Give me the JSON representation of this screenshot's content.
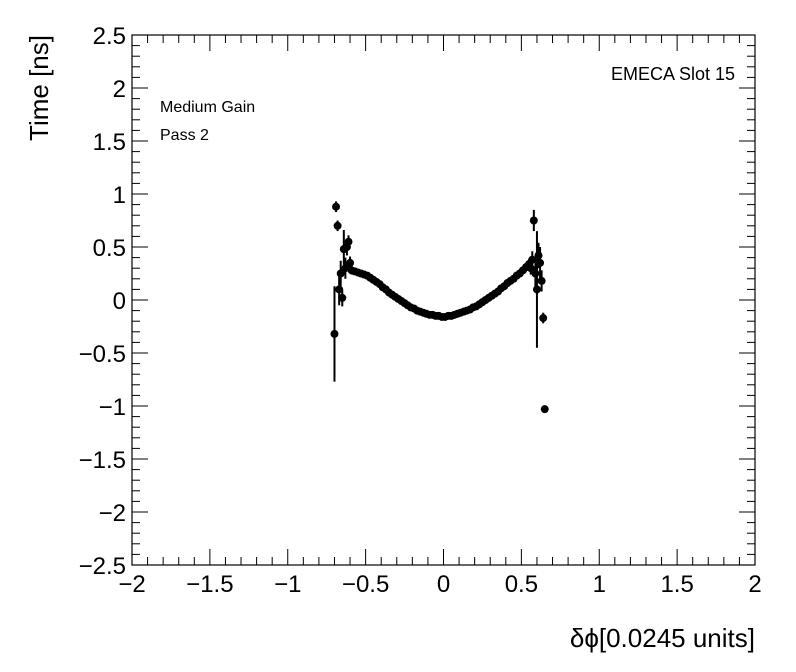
{
  "chart_data": {
    "type": "scatter",
    "title": "",
    "xlabel": "δϕ[0.0245 units]",
    "ylabel": "Time [ns]",
    "xlim": [
      -2,
      2
    ],
    "ylim": [
      -2.5,
      2.5
    ],
    "x_ticks": [
      -2,
      -1.5,
      -1,
      -0.5,
      0,
      0.5,
      1,
      1.5,
      2
    ],
    "x_tick_labels": [
      "−2",
      "−1.5",
      "−1",
      "−0.5",
      "0",
      "0.5",
      "1",
      "1.5",
      "2"
    ],
    "y_ticks": [
      -2.5,
      -2,
      -1.5,
      -1,
      -0.5,
      0,
      0.5,
      1,
      1.5,
      2,
      2.5
    ],
    "y_tick_labels": [
      "−2.5",
      "−2",
      "−1.5",
      "−1",
      "−0.5",
      "0",
      "0.5",
      "1",
      "1.5",
      "2",
      "2.5"
    ],
    "grid": false,
    "annotations": {
      "gain": "Medium Gain",
      "pass": "Pass 2",
      "slot": "EMECA Slot 15"
    },
    "points": [
      {
        "x": -0.7,
        "y": -0.32,
        "err": 0.45
      },
      {
        "x": -0.69,
        "y": 0.88,
        "err": 0.05
      },
      {
        "x": -0.68,
        "y": 0.7,
        "err": 0.05
      },
      {
        "x": -0.67,
        "y": 0.1,
        "err": 0.15
      },
      {
        "x": -0.66,
        "y": 0.25,
        "err": 0.12
      },
      {
        "x": -0.65,
        "y": 0.02,
        "err": 0.08
      },
      {
        "x": -0.64,
        "y": 0.48,
        "err": 0.18
      },
      {
        "x": -0.63,
        "y": 0.3,
        "err": 0.1
      },
      {
        "x": -0.62,
        "y": 0.5,
        "err": 0.08
      },
      {
        "x": -0.61,
        "y": 0.55,
        "err": 0.06
      },
      {
        "x": -0.6,
        "y": 0.35,
        "err": 0.06
      },
      {
        "x": -0.59,
        "y": 0.28,
        "err": 0.04
      },
      {
        "x": -0.57,
        "y": 0.27,
        "err": 0.03
      },
      {
        "x": -0.55,
        "y": 0.26,
        "err": 0.02
      },
      {
        "x": -0.53,
        "y": 0.25,
        "err": 0.02
      },
      {
        "x": -0.51,
        "y": 0.24,
        "err": 0.02
      },
      {
        "x": -0.49,
        "y": 0.23,
        "err": 0.02
      },
      {
        "x": -0.47,
        "y": 0.21,
        "err": 0.02
      },
      {
        "x": -0.45,
        "y": 0.19,
        "err": 0.02
      },
      {
        "x": -0.43,
        "y": 0.17,
        "err": 0.02
      },
      {
        "x": -0.41,
        "y": 0.15,
        "err": 0.02
      },
      {
        "x": -0.39,
        "y": 0.12,
        "err": 0.02
      },
      {
        "x": -0.37,
        "y": 0.1,
        "err": 0.02
      },
      {
        "x": -0.35,
        "y": 0.07,
        "err": 0.02
      },
      {
        "x": -0.33,
        "y": 0.05,
        "err": 0.02
      },
      {
        "x": -0.31,
        "y": 0.03,
        "err": 0.02
      },
      {
        "x": -0.29,
        "y": 0.01,
        "err": 0.02
      },
      {
        "x": -0.27,
        "y": -0.01,
        "err": 0.02
      },
      {
        "x": -0.25,
        "y": -0.03,
        "err": 0.02
      },
      {
        "x": -0.23,
        "y": -0.05,
        "err": 0.02
      },
      {
        "x": -0.21,
        "y": -0.07,
        "err": 0.02
      },
      {
        "x": -0.19,
        "y": -0.08,
        "err": 0.02
      },
      {
        "x": -0.17,
        "y": -0.1,
        "err": 0.02
      },
      {
        "x": -0.15,
        "y": -0.11,
        "err": 0.02
      },
      {
        "x": -0.13,
        "y": -0.12,
        "err": 0.02
      },
      {
        "x": -0.11,
        "y": -0.13,
        "err": 0.02
      },
      {
        "x": -0.09,
        "y": -0.14,
        "err": 0.02
      },
      {
        "x": -0.07,
        "y": -0.14,
        "err": 0.02
      },
      {
        "x": -0.05,
        "y": -0.15,
        "err": 0.02
      },
      {
        "x": -0.03,
        "y": -0.15,
        "err": 0.02
      },
      {
        "x": -0.01,
        "y": -0.16,
        "err": 0.02
      },
      {
        "x": 0.01,
        "y": -0.16,
        "err": 0.02
      },
      {
        "x": 0.03,
        "y": -0.15,
        "err": 0.02
      },
      {
        "x": 0.05,
        "y": -0.15,
        "err": 0.02
      },
      {
        "x": 0.07,
        "y": -0.14,
        "err": 0.02
      },
      {
        "x": 0.09,
        "y": -0.13,
        "err": 0.02
      },
      {
        "x": 0.11,
        "y": -0.12,
        "err": 0.02
      },
      {
        "x": 0.13,
        "y": -0.11,
        "err": 0.02
      },
      {
        "x": 0.15,
        "y": -0.1,
        "err": 0.02
      },
      {
        "x": 0.17,
        "y": -0.09,
        "err": 0.02
      },
      {
        "x": 0.19,
        "y": -0.07,
        "err": 0.02
      },
      {
        "x": 0.21,
        "y": -0.06,
        "err": 0.02
      },
      {
        "x": 0.23,
        "y": -0.04,
        "err": 0.02
      },
      {
        "x": 0.25,
        "y": -0.02,
        "err": 0.02
      },
      {
        "x": 0.27,
        "y": 0.0,
        "err": 0.02
      },
      {
        "x": 0.29,
        "y": 0.02,
        "err": 0.02
      },
      {
        "x": 0.31,
        "y": 0.04,
        "err": 0.02
      },
      {
        "x": 0.33,
        "y": 0.06,
        "err": 0.02
      },
      {
        "x": 0.35,
        "y": 0.08,
        "err": 0.02
      },
      {
        "x": 0.37,
        "y": 0.11,
        "err": 0.02
      },
      {
        "x": 0.39,
        "y": 0.13,
        "err": 0.02
      },
      {
        "x": 0.41,
        "y": 0.16,
        "err": 0.02
      },
      {
        "x": 0.43,
        "y": 0.18,
        "err": 0.02
      },
      {
        "x": 0.45,
        "y": 0.2,
        "err": 0.02
      },
      {
        "x": 0.47,
        "y": 0.23,
        "err": 0.03
      },
      {
        "x": 0.49,
        "y": 0.25,
        "err": 0.03
      },
      {
        "x": 0.51,
        "y": 0.28,
        "err": 0.03
      },
      {
        "x": 0.53,
        "y": 0.31,
        "err": 0.04
      },
      {
        "x": 0.55,
        "y": 0.34,
        "err": 0.05
      },
      {
        "x": 0.56,
        "y": 0.3,
        "err": 0.06
      },
      {
        "x": 0.57,
        "y": 0.38,
        "err": 0.08
      },
      {
        "x": 0.58,
        "y": 0.75,
        "err": 0.1
      },
      {
        "x": 0.59,
        "y": 0.25,
        "err": 0.15
      },
      {
        "x": 0.6,
        "y": 0.1,
        "err": 0.55
      },
      {
        "x": 0.61,
        "y": 0.42,
        "err": 0.12
      },
      {
        "x": 0.62,
        "y": 0.35,
        "err": 0.15
      },
      {
        "x": 0.63,
        "y": 0.18,
        "err": 0.1
      },
      {
        "x": 0.64,
        "y": -0.17,
        "err": 0.05
      },
      {
        "x": 0.65,
        "y": -1.03,
        "err": 0.02
      }
    ]
  }
}
